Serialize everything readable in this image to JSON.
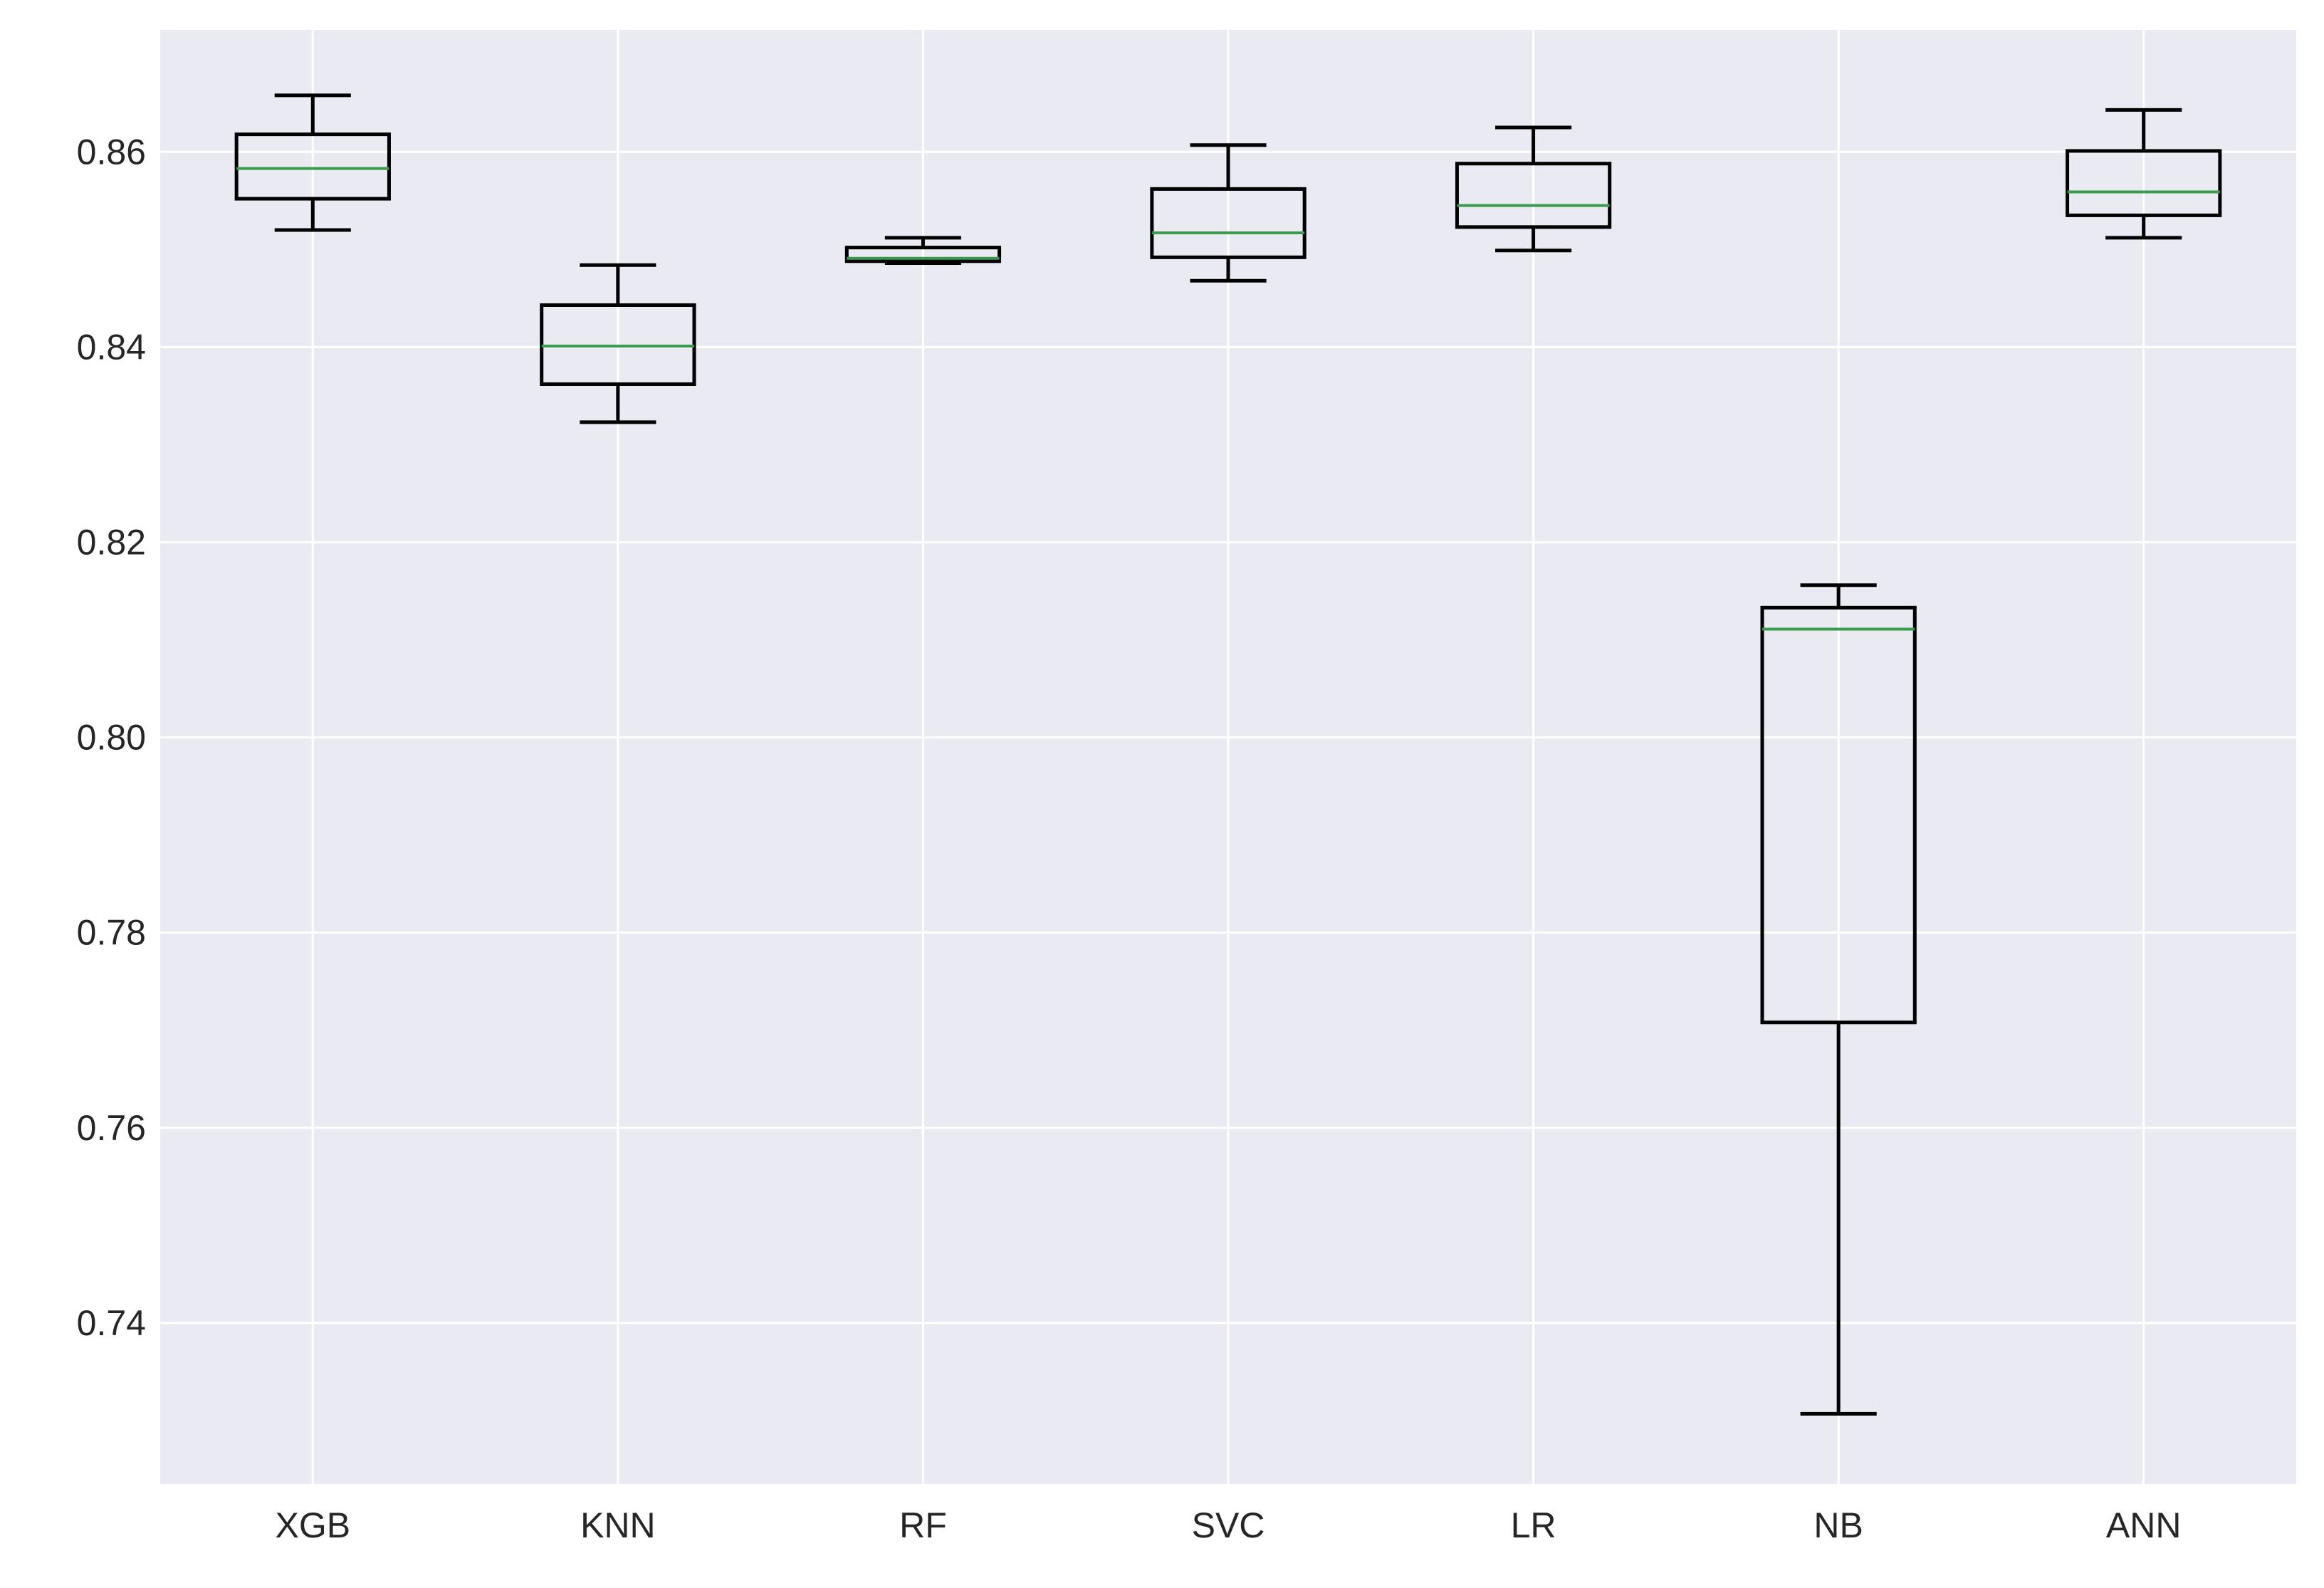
{
  "chart_data": {
    "type": "box",
    "categories": [
      "XGB",
      "KNN",
      "RF",
      "SVC",
      "LR",
      "NB",
      "ANN"
    ],
    "boxes": [
      {
        "label": "XGB",
        "whisker_low": 0.852,
        "q1": 0.8552,
        "median": 0.8583,
        "q3": 0.8618,
        "whisker_high": 0.8658
      },
      {
        "label": "KNN",
        "whisker_low": 0.8323,
        "q1": 0.8362,
        "median": 0.8401,
        "q3": 0.8443,
        "whisker_high": 0.8484
      },
      {
        "label": "RF",
        "whisker_low": 0.8486,
        "q1": 0.8488,
        "median": 0.8491,
        "q3": 0.8502,
        "whisker_high": 0.8512
      },
      {
        "label": "SVC",
        "whisker_low": 0.8468,
        "q1": 0.8492,
        "median": 0.8517,
        "q3": 0.8562,
        "whisker_high": 0.8607
      },
      {
        "label": "LR",
        "whisker_low": 0.8499,
        "q1": 0.8523,
        "median": 0.8545,
        "q3": 0.8588,
        "whisker_high": 0.8625
      },
      {
        "label": "NB",
        "whisker_low": 0.7307,
        "q1": 0.7708,
        "median": 0.8111,
        "q3": 0.8133,
        "whisker_high": 0.8156
      },
      {
        "label": "ANN",
        "whisker_low": 0.8512,
        "q1": 0.8535,
        "median": 0.8559,
        "q3": 0.8601,
        "whisker_high": 0.8643
      }
    ],
    "y_ticks": [
      0.74,
      0.76,
      0.78,
      0.8,
      0.82,
      0.84,
      0.86
    ],
    "y_tick_labels": [
      "0.74",
      "0.76",
      "0.78",
      "0.80",
      "0.82",
      "0.84",
      "0.86"
    ],
    "ylim": [
      0.7235,
      0.8725
    ],
    "grid": true,
    "title": "",
    "xlabel": "",
    "ylabel": "",
    "colors": {
      "background": "#eaeaf2",
      "grid": "#ffffff",
      "box": "#000000",
      "median": "#3a9a4e",
      "text": "#262626"
    }
  }
}
